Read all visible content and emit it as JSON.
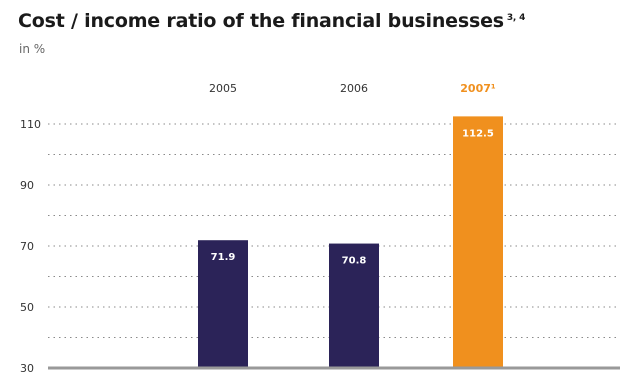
{
  "title": "Cost / income ratio of the financial businesses",
  "title_footnote": "3, 4",
  "unit_label": "in %",
  "colors": {
    "series": "#2b2358",
    "highlight": "#f0901e",
    "baseline": "#999999",
    "grid": "#8a8a8a",
    "text": "#333333"
  },
  "chart_data": {
    "type": "bar",
    "categories": [
      "2005",
      "2006",
      "2007¹"
    ],
    "values": [
      71.9,
      70.8,
      112.5
    ],
    "value_labels": [
      "71.9",
      "70.8",
      "112.5"
    ],
    "highlight_index": 2,
    "yticks": [
      30,
      50,
      70,
      90,
      110
    ],
    "ylim": [
      30,
      113
    ],
    "ylabel": "in %",
    "grid": "dotted horizontal",
    "legend": "none"
  }
}
